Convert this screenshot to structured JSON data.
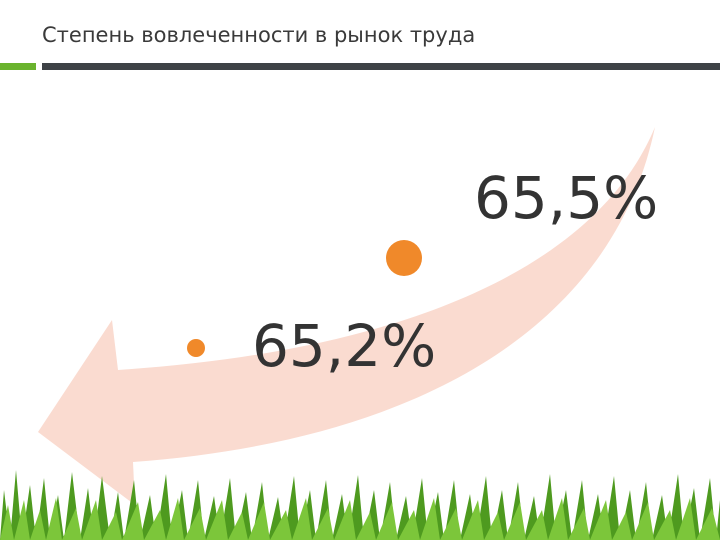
{
  "header": {
    "title": "Степень вовлеченности в рынок труда"
  },
  "items": [
    {
      "label": "65,5%"
    },
    {
      "label": "65,2%"
    }
  ]
}
